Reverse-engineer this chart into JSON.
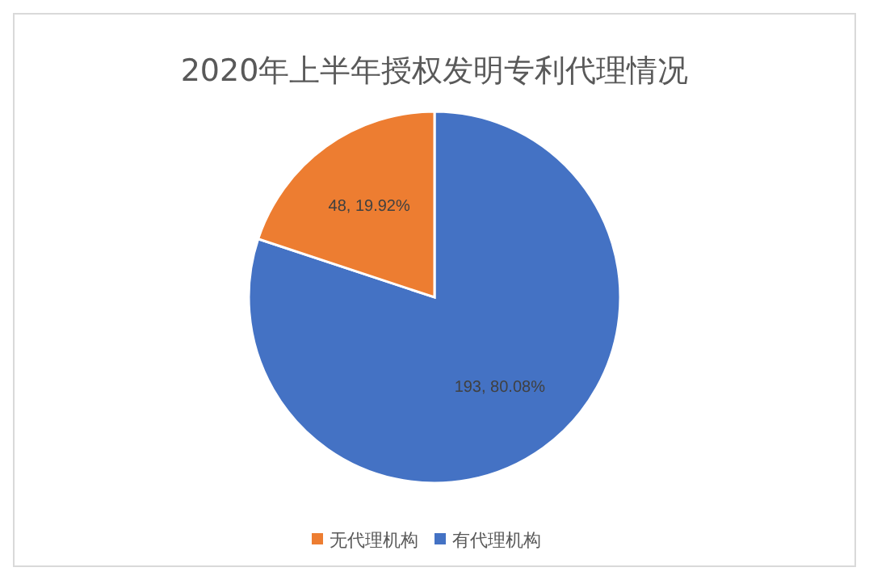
{
  "chart_data": {
    "type": "pie",
    "title": "2020年上半年授权发明专利代理情况",
    "categories": [
      "有代理机构",
      "无代理机构"
    ],
    "values": [
      193,
      48
    ],
    "colors": [
      "#4472c4",
      "#ed7d31"
    ],
    "value_labels": [
      "193, 80.08%",
      "48, 19.92%"
    ],
    "legend": "bottom"
  }
}
